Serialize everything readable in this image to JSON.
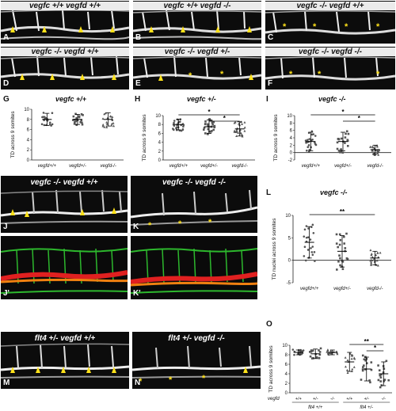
{
  "panels": {
    "A": {
      "label": "A",
      "title": "vegfc +/+ vegfd +/+"
    },
    "B": {
      "label": "B",
      "title": "vegfc +/+ vegfd -/-"
    },
    "C": {
      "label": "C",
      "title": "vegfc -/- vegfd +/+"
    },
    "D": {
      "label": "D",
      "title": "vegfc -/- vegfd +/+"
    },
    "E": {
      "label": "E",
      "title": "vegfc -/- vegfd +/-"
    },
    "F": {
      "label": "F",
      "title": "vegfc -/- vegfd -/-"
    },
    "J": {
      "label": "J",
      "title": "vegfc -/- vegfd +/+"
    },
    "K": {
      "label": "K",
      "title": "vegfc -/- vegfd -/-"
    },
    "J2": {
      "label": "J'"
    },
    "K2": {
      "label": "K'"
    },
    "M": {
      "label": "M",
      "title": "flt4 +/- vegfd +/+"
    },
    "N": {
      "label": "N",
      "title": "flt4 +/- vegfd -/-"
    }
  },
  "markers": {
    "arrow_color": "#ffe21a",
    "star_glyph": "*"
  },
  "graphs": {
    "G": {
      "label": "G",
      "title": "vegfc +/+",
      "ylabel": "TD across 9 somites"
    },
    "H": {
      "label": "H",
      "title": "vegfc +/-",
      "ylabel": "TD across 9 somites"
    },
    "I": {
      "label": "I",
      "title": "vegfc -/-",
      "ylabel": "TD across 9 somites"
    },
    "L": {
      "label": "L",
      "title": "vegfc -/-",
      "ylabel": "TD nuclei across 9 somites"
    },
    "O": {
      "label": "O",
      "ylabel": "TD across 9 somites",
      "row_label": "vegfd",
      "group1": "flt4 +/+",
      "group2": "flt4 +/-",
      "cats": [
        "+/+",
        "+/-",
        "-/-",
        "+/+",
        "+/-",
        "-/-"
      ]
    }
  },
  "chart_data": [
    {
      "id": "G",
      "type": "scatter",
      "title": "vegfc +/+",
      "ylabel": "TD across 9 somites",
      "categories": [
        "vegfd+/+",
        "vegfd+/-",
        "vegfd-/-"
      ],
      "ylim": [
        0,
        10
      ],
      "yticks": [
        0,
        2,
        4,
        6,
        8,
        10
      ],
      "means": [
        8,
        8,
        8
      ],
      "sd": [
        1.2,
        1.0,
        1.3
      ]
    },
    {
      "id": "H",
      "type": "scatter",
      "title": "vegfc +/-",
      "ylabel": "TD across 9 somites",
      "categories": [
        "vegfd+/+",
        "vegfd+/-",
        "vegfd-/-"
      ],
      "ylim": [
        0,
        10
      ],
      "yticks": [
        0,
        2,
        4,
        6,
        8,
        10
      ],
      "means": [
        8,
        7.5,
        7
      ],
      "sd": [
        1.2,
        1.5,
        1.6
      ],
      "significance": [
        {
          "from": 0,
          "to": 2,
          "label": "*"
        },
        {
          "from": 1,
          "to": 2,
          "label": "*"
        }
      ]
    },
    {
      "id": "I",
      "type": "scatter",
      "title": "vegfc -/-",
      "ylabel": "TD across 9 somites",
      "categories": [
        "vegfd+/+",
        "vegfd+/-",
        "vegfd-/-"
      ],
      "ylim": [
        -2,
        10
      ],
      "yticks": [
        -2,
        0,
        2,
        4,
        6,
        8,
        10
      ],
      "means": [
        3,
        3,
        0.8
      ],
      "sd": [
        2.5,
        2.5,
        1.2
      ],
      "significance": [
        {
          "from": 0,
          "to": 2,
          "label": "*"
        },
        {
          "from": 1,
          "to": 2,
          "label": "*"
        }
      ]
    },
    {
      "id": "L",
      "type": "scatter",
      "title": "vegfc -/-",
      "ylabel": "TD nuclei across 9 somites",
      "categories": [
        "vegfd+/+",
        "vegfd+/-",
        "vegfd-/-"
      ],
      "ylim": [
        -5,
        10
      ],
      "yticks": [
        -5,
        0,
        5,
        10
      ],
      "means": [
        4,
        2,
        0.5
      ],
      "sd": [
        3.5,
        3.5,
        1.5
      ],
      "significance": [
        {
          "from": 0,
          "to": 2,
          "label": "**"
        }
      ]
    },
    {
      "id": "O",
      "type": "scatter",
      "ylabel": "TD across 9 somites",
      "categories": [
        "+/+",
        "+/-",
        "-/-",
        "+/+",
        "+/-",
        "-/-"
      ],
      "groups": [
        "flt4 +/+",
        "flt4 +/-"
      ],
      "ylim": [
        0,
        10
      ],
      "yticks": [
        0,
        2,
        4,
        6,
        8,
        10
      ],
      "means": [
        8.5,
        8.2,
        8.5,
        6.5,
        5,
        4
      ],
      "sd": [
        0.5,
        1.0,
        0.5,
        2,
        2.5,
        2.5
      ],
      "significance": [
        {
          "from": 3,
          "to": 5,
          "label": "**"
        },
        {
          "from": 4,
          "to": 5,
          "label": "*"
        }
      ]
    }
  ]
}
